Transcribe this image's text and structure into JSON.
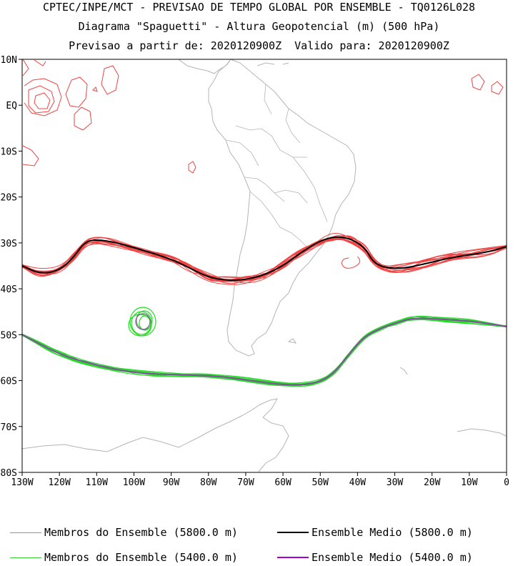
{
  "title": {
    "line1": "CPTEC/INPE/MCT - PREVISAO DE TEMPO GLOBAL POR ENSEMBLE - TQ0126L028",
    "line2": "Diagrama \"Spaguetti\" - Altura Geopotencial (m) (500 hPa)",
    "line3": "Previsao a partir de: 2020120900Z  Valido para: 2020120900Z"
  },
  "axes": {
    "lat_labels": [
      "10N",
      "EQ",
      "10S",
      "20S",
      "30S",
      "40S",
      "50S",
      "60S",
      "70S",
      "80S"
    ],
    "lat_values": [
      10,
      0,
      -10,
      -20,
      -30,
      -40,
      -50,
      -60,
      -70,
      -80
    ],
    "lon_labels": [
      "130W",
      "120W",
      "110W",
      "100W",
      "90W",
      "80W",
      "70W",
      "60W",
      "50W",
      "40W",
      "30W",
      "20W",
      "10W",
      "0"
    ],
    "lon_values": [
      -130,
      -120,
      -110,
      -100,
      -90,
      -80,
      -70,
      -60,
      -50,
      -40,
      -30,
      -20,
      -10,
      0
    ],
    "lon_range": [
      -130,
      0
    ],
    "lat_range": [
      -80,
      10
    ]
  },
  "legend": [
    {
      "label": "Membros do Ensemble (5800.0 m)",
      "color": "#ff6666",
      "width": 1
    },
    {
      "label": "Ensemble Medio (5800.0 m)",
      "color": "#000000",
      "width": 2
    },
    {
      "label": "Membros do Ensemble (5400.0 m)",
      "color": "#33cc33",
      "width": 1
    },
    {
      "label": "Ensemble Medio (5400.0 m)",
      "color": "#aa00cc",
      "width": 2
    }
  ],
  "colors": {
    "member_5800": "#ee4444",
    "mean_5800": "#000000",
    "member_5400": "#22dd22",
    "mean_5400": "#8a4aa8",
    "coast": "#b4b4b4"
  },
  "contours": {
    "mean_5800": [
      [
        -130,
        -35
      ],
      [
        -125,
        -36.8
      ],
      [
        -120,
        -36
      ],
      [
        -116,
        -33
      ],
      [
        -113,
        -29.5
      ],
      [
        -108,
        -29.3
      ],
      [
        -100,
        -31
      ],
      [
        -90,
        -33.5
      ],
      [
        -85,
        -35.5
      ],
      [
        -80,
        -37.5
      ],
      [
        -75,
        -38.2
      ],
      [
        -70,
        -38
      ],
      [
        -65,
        -37
      ],
      [
        -60,
        -35
      ],
      [
        -55,
        -32
      ],
      [
        -50,
        -29.5
      ],
      [
        -46,
        -28.6
      ],
      [
        -42,
        -29
      ],
      [
        -38,
        -31
      ],
      [
        -36,
        -34
      ],
      [
        -33,
        -35.4
      ],
      [
        -28,
        -35.6
      ],
      [
        -22,
        -34.6
      ],
      [
        -15,
        -33.2
      ],
      [
        -5,
        -32
      ],
      [
        0,
        -30.8
      ]
    ],
    "mean_5400": [
      [
        -130,
        -50
      ],
      [
        -123,
        -53
      ],
      [
        -118,
        -54.8
      ],
      [
        -112,
        -56.2
      ],
      [
        -105,
        -57.6
      ],
      [
        -97,
        -58.5
      ],
      [
        -88,
        -58.7
      ],
      [
        -78,
        -59
      ],
      [
        -70,
        -59.8
      ],
      [
        -60,
        -61
      ],
      [
        -52,
        -60.8
      ],
      [
        -47,
        -59
      ],
      [
        -43,
        -55
      ],
      [
        -39,
        -51
      ],
      [
        -35,
        -49
      ],
      [
        -30,
        -47.5
      ],
      [
        -25,
        -46.3
      ],
      [
        -18,
        -46.6
      ],
      [
        -10,
        -47
      ],
      [
        0,
        -48.2
      ]
    ]
  }
}
